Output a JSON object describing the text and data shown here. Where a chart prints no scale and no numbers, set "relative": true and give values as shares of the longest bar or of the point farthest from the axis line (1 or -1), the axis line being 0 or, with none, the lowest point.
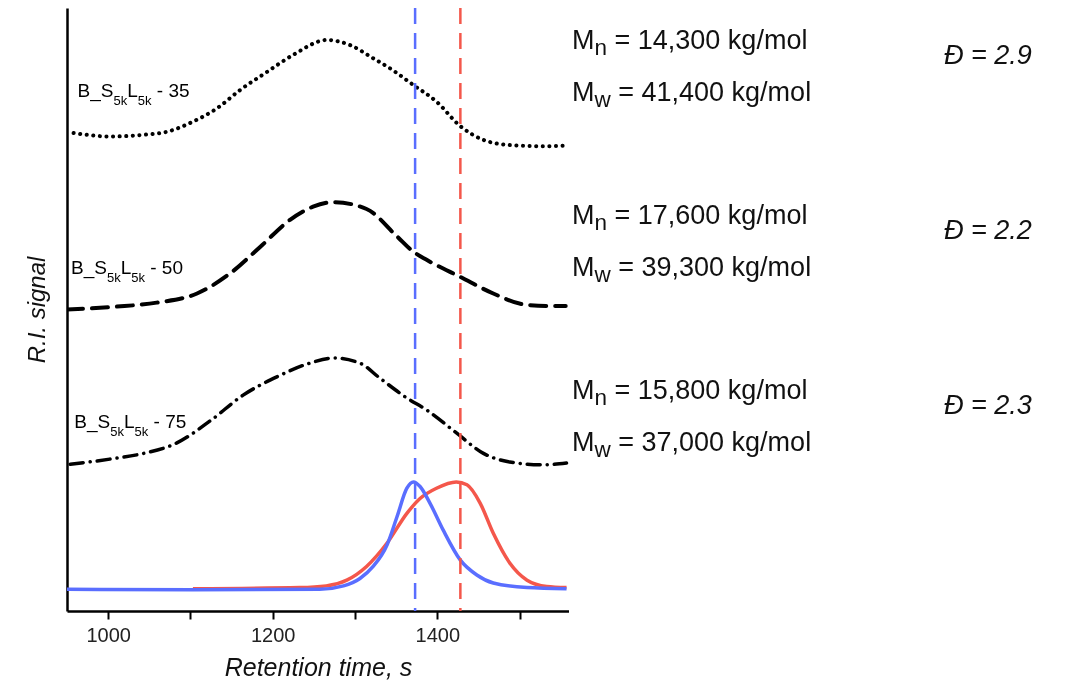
{
  "chart_data": {
    "type": "line",
    "relative": true,
    "xlabel": "Retention time, s",
    "ylabel": "R.I. signal",
    "xlim": [
      950,
      1560
    ],
    "xticks": [
      1000,
      {
        "value": 1100,
        "label": null
      },
      1200,
      {
        "value": 1300,
        "label": null
      },
      1400,
      {
        "value": 1500,
        "label": null
      }
    ],
    "series": [
      {
        "name": "B_S$_{5k}$L$_{5k}$ - 35",
        "color": "#000000",
        "line_style": "dotted",
        "x": [
          958,
          1002,
          1043,
          1071,
          1103,
          1132,
          1160,
          1193,
          1225,
          1266,
          1294,
          1322,
          1346,
          1371,
          1399,
          1428,
          1456,
          1488,
          1529,
          1557
        ],
        "values": [
          0.837,
          0.831,
          0.834,
          0.839,
          0.857,
          0.88,
          0.912,
          0.944,
          0.974,
          1.0,
          0.991,
          0.968,
          0.947,
          0.921,
          0.892,
          0.849,
          0.825,
          0.816,
          0.814,
          0.815
        ]
      },
      {
        "name": "B_S$_{5k}$L$_{5k}$ - 50",
        "color": "#000000",
        "line_style": "dashed",
        "x": [
          950,
          1010,
          1059,
          1108,
          1148,
          1185,
          1221,
          1249,
          1274,
          1314,
          1351,
          1371,
          1387,
          1428,
          1468,
          1509,
          1541,
          1556
        ],
        "values": [
          0.528,
          0.533,
          0.54,
          0.556,
          0.591,
          0.638,
          0.685,
          0.708,
          0.716,
          0.704,
          0.656,
          0.629,
          0.615,
          0.585,
          0.556,
          0.536,
          0.534,
          0.534
        ]
      },
      {
        "name": "B_S$_{5k}$L$_{5k}$ - 75",
        "color": "#000000",
        "line_style": "dashdot",
        "x": [
          954,
          1002,
          1043,
          1083,
          1124,
          1164,
          1205,
          1245,
          1274,
          1306,
          1330,
          1363,
          1387,
          1424,
          1456,
          1488,
          1529,
          1557
        ],
        "values": [
          0.257,
          0.266,
          0.276,
          0.294,
          0.333,
          0.378,
          0.41,
          0.434,
          0.443,
          0.434,
          0.408,
          0.373,
          0.352,
          0.311,
          0.276,
          0.261,
          0.256,
          0.259
        ]
      },
      {
        "color": "#f4574b",
        "line_style": "solid",
        "x": [
          1103,
          1233,
          1265,
          1290,
          1314,
          1339,
          1363,
          1379,
          1399,
          1423,
          1436,
          1452,
          1468,
          1488,
          1509,
          1533,
          1557
        ],
        "values": [
          0.039,
          0.041,
          0.044,
          0.054,
          0.078,
          0.119,
          0.171,
          0.197,
          0.215,
          0.226,
          0.221,
          0.189,
          0.136,
          0.084,
          0.054,
          0.043,
          0.041
        ]
      },
      {
        "color": "#5a6eff",
        "line_style": "solid",
        "x": [
          950,
          1103,
          1257,
          1286,
          1306,
          1322,
          1339,
          1351,
          1363,
          1371,
          1379,
          1391,
          1407,
          1428,
          1448,
          1468,
          1509,
          1557
        ],
        "values": [
          0.038,
          0.037,
          0.038,
          0.044,
          0.057,
          0.078,
          0.116,
          0.165,
          0.215,
          0.226,
          0.218,
          0.189,
          0.142,
          0.089,
          0.063,
          0.049,
          0.041,
          0.039
        ]
      }
    ],
    "ref_lines": [
      {
        "axis": "x",
        "value": 1373,
        "color": "#5a6eff",
        "line_style": "dashed"
      },
      {
        "axis": "x",
        "value": 1428,
        "color": "#f4574b",
        "line_style": "dashed"
      }
    ],
    "annotations": [
      "M$_{n}$ = 14,300 kg/mol",
      "M$_{w}$ = 41,400 kg/mol",
      "Đ = 2.9",
      "M$_{n}$ = 17,600 kg/mol",
      "M$_{w}$ = 39,300 kg/mol",
      "Đ = 2.2",
      "M$_{n}$ = 15,800 kg/mol",
      "M$_{w}$ = 37,000 kg/mol",
      "Đ = 2.3"
    ]
  }
}
